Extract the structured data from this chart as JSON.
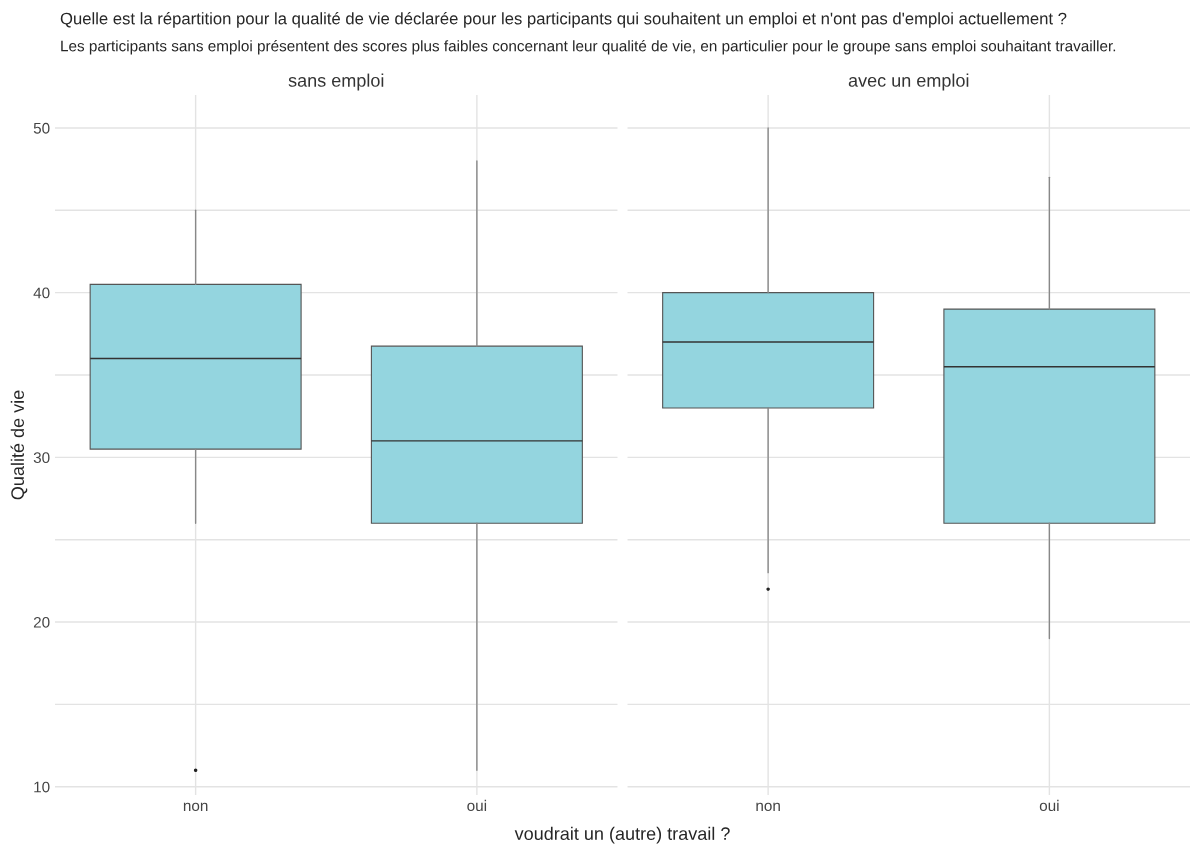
{
  "chart_data": [
    {
      "type": "box",
      "title": "sans emploi",
      "annotations": [
        "Quelle est la répartition pour la qualité de vie déclarée pour les participants qui souhaitent un emploi et n'ont pas d'emploi actuellement ?",
        "Les participants sans emploi présentent des scores plus faibles concernant leur qualité de vie, en particulier pour le groupe sans emploi souhaitant travailler."
      ],
      "xlabel": "voudrait un (autre) travail ?",
      "ylabel": "Qualité de vie",
      "categories": [
        "non",
        "oui"
      ],
      "color": "#94d5df",
      "boxes": [
        {
          "low": 26,
          "q1": 30.5,
          "median": 36,
          "q3": 40.5,
          "high": 45,
          "outliers": [
            11
          ]
        },
        {
          "low": 11,
          "q1": 26,
          "median": 31,
          "q3": 36.75,
          "high": 48
        }
      ],
      "ylim": [
        9.5,
        52
      ],
      "yticks": [
        10,
        {
          "value": 15,
          "label": null
        },
        20,
        {
          "value": 25,
          "label": null
        },
        30,
        {
          "value": 35,
          "label": null
        },
        40,
        {
          "value": 45,
          "label": null
        },
        50
      ],
      "grid": true
    },
    {
      "type": "box",
      "title": "avec un emploi",
      "categories": [
        "non",
        "oui"
      ],
      "color": "#94d5df",
      "boxes": [
        {
          "low": 23,
          "q1": 33,
          "median": 37,
          "q3": 40,
          "high": 50,
          "outliers": [
            22
          ]
        },
        {
          "low": 19,
          "q1": 26,
          "median": 35.5,
          "q3": 39,
          "high": 47
        }
      ],
      "ylim": [
        9.5,
        52
      ],
      "yticks": [
        10,
        {
          "value": 15,
          "label": null
        },
        20,
        {
          "value": 25,
          "label": null
        },
        30,
        {
          "value": 35,
          "label": null
        },
        40,
        {
          "value": 45,
          "label": null
        },
        50
      ],
      "grid": true,
      "tick_labels": "x"
    }
  ]
}
